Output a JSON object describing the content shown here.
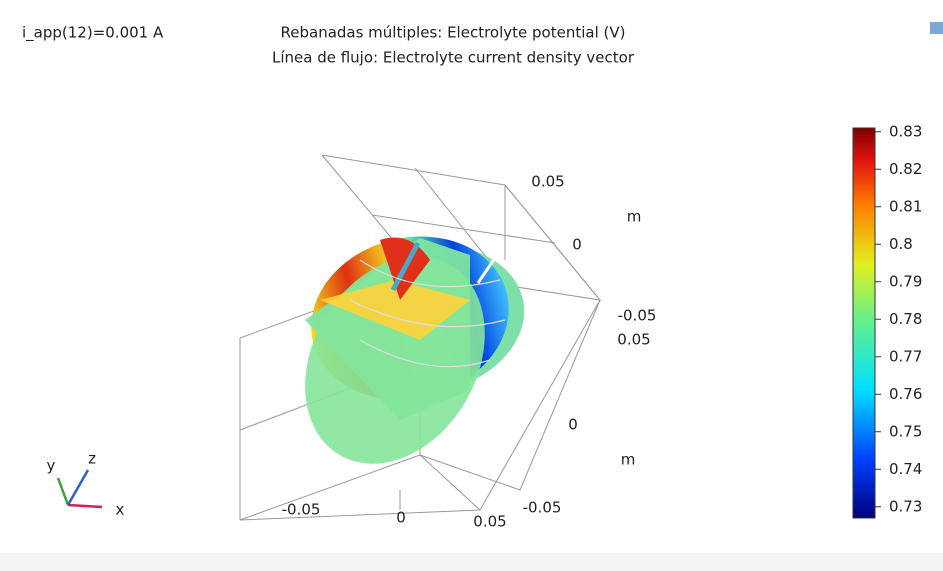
{
  "header": {
    "left": "i_app(12)=0.001 A",
    "title": "Rebanadas múltiples: Electrolyte potential (V)",
    "subtitle": "Línea de flujo: Electrolyte current density vector"
  },
  "axis_labels": [
    "0.05",
    "m",
    "0",
    "-0.05",
    "0.05",
    "0",
    "m",
    "-0.05",
    "0.05",
    "-0.05",
    "0"
  ],
  "triad": {
    "x": "x",
    "y": "y",
    "z": "z"
  },
  "colorbar": {
    "lim": [
      0.727,
      0.831
    ],
    "ticks": [
      0.83,
      0.82,
      0.81,
      0.8,
      0.79,
      0.78,
      0.77,
      0.76,
      0.75,
      0.74,
      0.73
    ]
  }
}
